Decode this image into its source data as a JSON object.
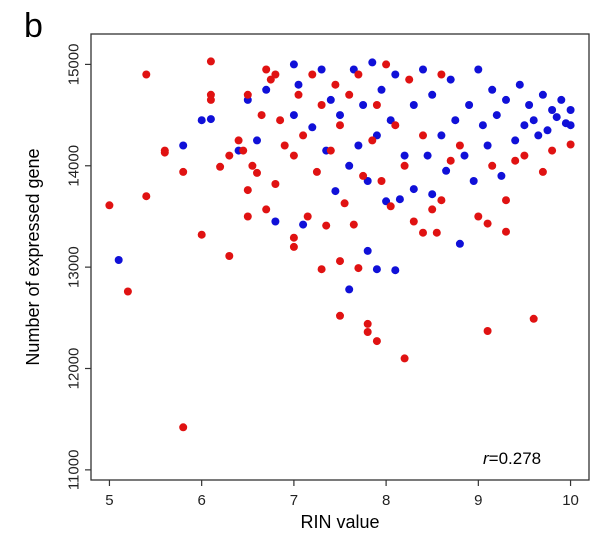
{
  "panel_label": "b",
  "chart_data": {
    "type": "scatter",
    "title": "",
    "xlabel": "RIN value",
    "ylabel": "Number of expressed gene",
    "xlim": [
      4.8,
      10.2
    ],
    "ylim": [
      10900,
      15300
    ],
    "xticks": [
      5,
      6,
      7,
      8,
      9,
      10
    ],
    "yticks": [
      11000,
      12000,
      13000,
      14000,
      15000
    ],
    "xtick_labels": [
      "5",
      "6",
      "7",
      "8",
      "9",
      "10"
    ],
    "ytick_labels": [
      "11000",
      "12000",
      "13000",
      "14000",
      "15000"
    ],
    "grid": false,
    "legend": "none",
    "annotation": {
      "var": "r",
      "text": "=0.278"
    },
    "colors": {
      "blue": "#1010d8",
      "red": "#e01212",
      "frame": "#333333"
    },
    "series": [
      {
        "color": "blue",
        "points": [
          [
            5.1,
            13070
          ],
          [
            5.8,
            14200
          ],
          [
            6.0,
            14450
          ],
          [
            6.1,
            14460
          ],
          [
            6.4,
            14150
          ],
          [
            6.5,
            14650
          ],
          [
            6.6,
            14250
          ],
          [
            6.7,
            14750
          ],
          [
            6.8,
            13450
          ],
          [
            7.0,
            15000
          ],
          [
            7.0,
            14500
          ],
          [
            7.05,
            14800
          ],
          [
            7.1,
            13420
          ],
          [
            7.2,
            14380
          ],
          [
            7.3,
            14950
          ],
          [
            7.35,
            14150
          ],
          [
            7.4,
            14650
          ],
          [
            7.45,
            13750
          ],
          [
            7.5,
            14500
          ],
          [
            7.6,
            12780
          ],
          [
            7.6,
            14000
          ],
          [
            7.65,
            14950
          ],
          [
            7.7,
            14200
          ],
          [
            7.75,
            14600
          ],
          [
            7.8,
            13160
          ],
          [
            7.8,
            13850
          ],
          [
            7.85,
            15020
          ],
          [
            7.9,
            14300
          ],
          [
            7.9,
            12980
          ],
          [
            7.95,
            14750
          ],
          [
            8.0,
            13650
          ],
          [
            8.05,
            14450
          ],
          [
            8.1,
            12970
          ],
          [
            8.1,
            14900
          ],
          [
            8.15,
            13670
          ],
          [
            8.2,
            14100
          ],
          [
            8.3,
            14600
          ],
          [
            8.3,
            13770
          ],
          [
            8.4,
            14950
          ],
          [
            8.45,
            14100
          ],
          [
            8.5,
            13720
          ],
          [
            8.5,
            14700
          ],
          [
            8.6,
            14300
          ],
          [
            8.65,
            13950
          ],
          [
            8.7,
            14850
          ],
          [
            8.75,
            14450
          ],
          [
            8.8,
            13230
          ],
          [
            8.85,
            14100
          ],
          [
            8.9,
            14600
          ],
          [
            8.95,
            13850
          ],
          [
            9.0,
            14950
          ],
          [
            9.05,
            14400
          ],
          [
            9.1,
            14200
          ],
          [
            9.15,
            14750
          ],
          [
            9.2,
            14500
          ],
          [
            9.25,
            13900
          ],
          [
            9.3,
            14650
          ],
          [
            9.4,
            14250
          ],
          [
            9.45,
            14800
          ],
          [
            9.5,
            14400
          ],
          [
            9.55,
            14600
          ],
          [
            9.6,
            14450
          ],
          [
            9.65,
            14300
          ],
          [
            9.7,
            14700
          ],
          [
            9.75,
            14350
          ],
          [
            9.8,
            14550
          ],
          [
            9.85,
            14480
          ],
          [
            9.9,
            14650
          ],
          [
            9.95,
            14420
          ],
          [
            10.0,
            14400
          ],
          [
            10.0,
            14550
          ]
        ]
      },
      {
        "color": "red",
        "points": [
          [
            5.0,
            13610
          ],
          [
            5.2,
            12760
          ],
          [
            5.4,
            14900
          ],
          [
            5.4,
            13700
          ],
          [
            5.6,
            14150
          ],
          [
            5.6,
            14130
          ],
          [
            5.8,
            11420
          ],
          [
            5.8,
            13940
          ],
          [
            6.0,
            13320
          ],
          [
            6.1,
            15030
          ],
          [
            6.1,
            14650
          ],
          [
            6.1,
            14700
          ],
          [
            6.2,
            13990
          ],
          [
            6.3,
            13110
          ],
          [
            6.3,
            14100
          ],
          [
            6.4,
            14250
          ],
          [
            6.45,
            14150
          ],
          [
            6.5,
            13500
          ],
          [
            6.5,
            13760
          ],
          [
            6.5,
            14700
          ],
          [
            6.55,
            14000
          ],
          [
            6.6,
            13930
          ],
          [
            6.65,
            14500
          ],
          [
            6.7,
            14950
          ],
          [
            6.7,
            13570
          ],
          [
            6.75,
            14850
          ],
          [
            6.8,
            13820
          ],
          [
            6.8,
            14900
          ],
          [
            6.85,
            14450
          ],
          [
            6.9,
            14200
          ],
          [
            7.0,
            13290
          ],
          [
            7.0,
            14100
          ],
          [
            7.0,
            13200
          ],
          [
            7.05,
            14700
          ],
          [
            7.1,
            14300
          ],
          [
            7.15,
            13500
          ],
          [
            7.2,
            14900
          ],
          [
            7.25,
            13940
          ],
          [
            7.3,
            12980
          ],
          [
            7.3,
            14600
          ],
          [
            7.35,
            13410
          ],
          [
            7.4,
            14150
          ],
          [
            7.45,
            14800
          ],
          [
            7.5,
            12520
          ],
          [
            7.5,
            13060
          ],
          [
            7.5,
            14400
          ],
          [
            7.55,
            13630
          ],
          [
            7.6,
            14700
          ],
          [
            7.65,
            13420
          ],
          [
            7.7,
            12990
          ],
          [
            7.7,
            14900
          ],
          [
            7.75,
            13900
          ],
          [
            7.8,
            12440
          ],
          [
            7.8,
            12360
          ],
          [
            7.85,
            14250
          ],
          [
            7.9,
            12270
          ],
          [
            7.9,
            14600
          ],
          [
            7.95,
            13850
          ],
          [
            8.0,
            15000
          ],
          [
            8.05,
            13600
          ],
          [
            8.1,
            14400
          ],
          [
            8.2,
            12100
          ],
          [
            8.2,
            14000
          ],
          [
            8.25,
            14850
          ],
          [
            8.3,
            13450
          ],
          [
            8.4,
            13340
          ],
          [
            8.4,
            14300
          ],
          [
            8.5,
            13570
          ],
          [
            8.55,
            13340
          ],
          [
            8.6,
            13660
          ],
          [
            8.6,
            14900
          ],
          [
            8.7,
            14050
          ],
          [
            8.8,
            14200
          ],
          [
            9.0,
            13500
          ],
          [
            9.1,
            12370
          ],
          [
            9.1,
            13430
          ],
          [
            9.15,
            14000
          ],
          [
            9.3,
            13350
          ],
          [
            9.3,
            13660
          ],
          [
            9.4,
            14050
          ],
          [
            9.5,
            14100
          ],
          [
            9.6,
            12490
          ],
          [
            9.7,
            13940
          ],
          [
            9.8,
            14150
          ],
          [
            10.0,
            14210
          ]
        ]
      }
    ]
  }
}
